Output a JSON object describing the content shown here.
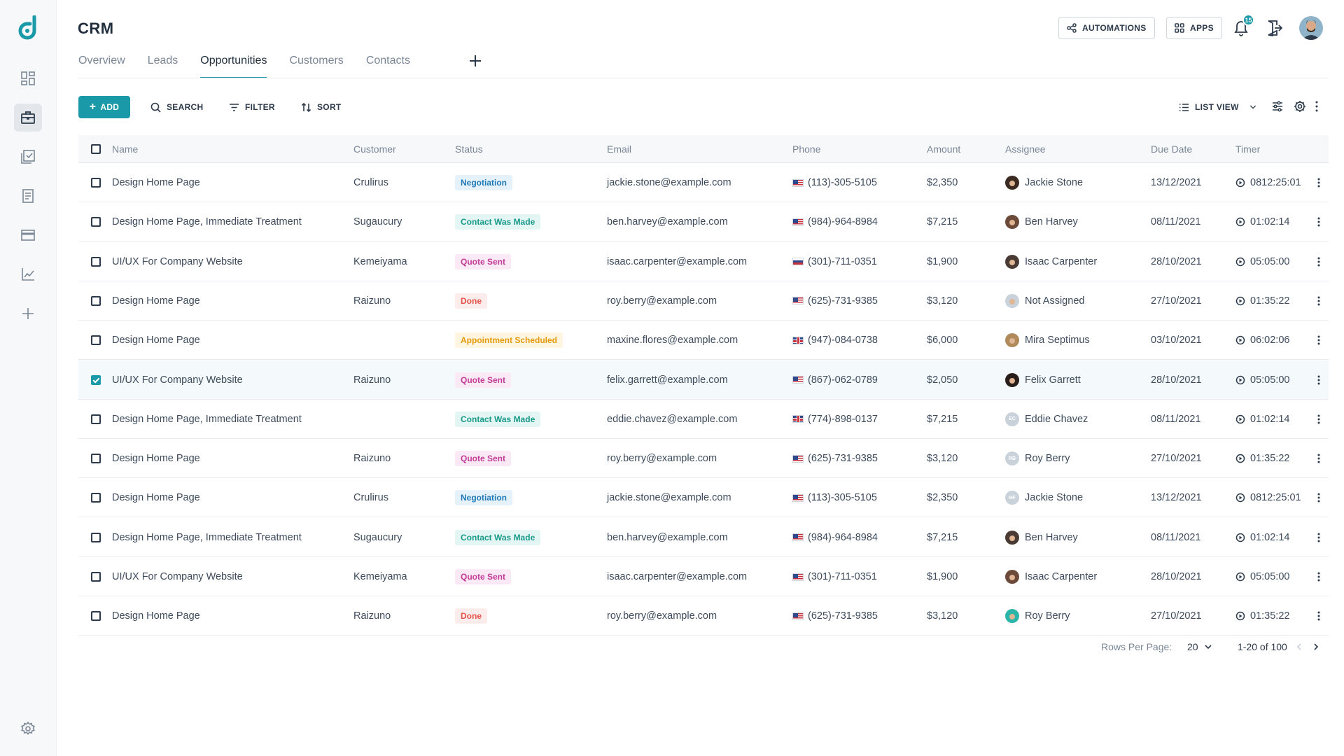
{
  "app": {
    "title": "CRM",
    "brand_color": "#1a9aa8",
    "notifications_count": "15",
    "avatar": "user-avatar"
  },
  "sidebar": {
    "items": [
      {
        "name": "dashboard-icon",
        "active": false
      },
      {
        "name": "briefcase-icon",
        "active": true
      },
      {
        "name": "tasks-icon",
        "active": false
      },
      {
        "name": "document-icon",
        "active": false
      },
      {
        "name": "card-icon",
        "active": false
      },
      {
        "name": "chart-icon",
        "active": false
      },
      {
        "name": "plus-icon",
        "active": false
      }
    ],
    "settings": "settings-icon"
  },
  "header": {
    "automations_label": "AUTOMATIONS",
    "apps_label": "APPS"
  },
  "tabs": [
    {
      "label": "Overview",
      "active": false
    },
    {
      "label": "Leads",
      "active": false
    },
    {
      "label": "Opportunities",
      "active": true
    },
    {
      "label": "Customers",
      "active": false
    },
    {
      "label": "Contacts",
      "active": false
    }
  ],
  "toolbar": {
    "add_label": "ADD",
    "search_label": "SEARCH",
    "filter_label": "FILTER",
    "sort_label": "SORT",
    "view_label": "LIST VIEW"
  },
  "table": {
    "columns": [
      "Name",
      "Customer",
      "Status",
      "Email",
      "Phone",
      "Amount",
      "Assignee",
      "Due Date",
      "Timer"
    ],
    "rows": [
      {
        "name": "Design Home Page",
        "customer": "Crulirus",
        "status": "Negotiation",
        "status_type": "negotiation",
        "email": "jackie.stone@example.com",
        "flag": "us",
        "phone": "(113)-305-5105",
        "amount": "$2,350",
        "assignee": "Jackie Stone",
        "avatar_color": "#3a2a22",
        "avatar_initials": "",
        "due": "13/12/2021",
        "timer": "0812:25:01",
        "checked": false
      },
      {
        "name": "Design Home Page, Immediate Treatment",
        "customer": "Sugaucury",
        "status": "Contact Was Made",
        "status_type": "contact",
        "email": "ben.harvey@example.com",
        "flag": "us",
        "phone": "(984)-964-8984",
        "amount": "$7,215",
        "assignee": "Ben Harvey",
        "avatar_color": "#6b4a3a",
        "avatar_initials": "",
        "due": "08/11/2021",
        "timer": "01:02:14",
        "checked": false
      },
      {
        "name": "UI/UX For Company Website",
        "customer": "Kemeiyama",
        "status": "Quote Sent",
        "status_type": "quote",
        "email": "isaac.carpenter@example.com",
        "flag": "ru",
        "phone": "(301)-711-0351",
        "amount": "$1,900",
        "assignee": "Isaac Carpenter",
        "avatar_color": "#4a3a34",
        "avatar_initials": "",
        "due": "28/10/2021",
        "timer": "05:05:00",
        "checked": false
      },
      {
        "name": "Design Home Page",
        "customer": "Raizuno",
        "status": "Done",
        "status_type": "done",
        "email": "roy.berry@example.com",
        "flag": "us",
        "phone": "(625)-731-9385",
        "amount": "$3,120",
        "assignee": "Not Assigned",
        "avatar_color": "#c9d1da",
        "avatar_initials": "",
        "due": "27/10/2021",
        "timer": "01:35:22",
        "checked": false
      },
      {
        "name": "Design Home Page",
        "customer": "",
        "status": "Appointment Scheduled",
        "status_type": "appointment",
        "email": "maxine.flores@example.com",
        "flag": "uk",
        "phone": "(947)-084-0738",
        "amount": "$6,000",
        "assignee": "Mira Septimus",
        "avatar_color": "#b08a5a",
        "avatar_initials": "",
        "due": "03/10/2021",
        "timer": "06:02:06",
        "checked": false
      },
      {
        "name": "UI/UX For Company Website",
        "customer": "Raizuno",
        "status": "Quote Sent",
        "status_type": "quote",
        "email": "felix.garrett@example.com",
        "flag": "us",
        "phone": "(867)-062-0789",
        "amount": "$2,050",
        "assignee": "Felix Garrett",
        "avatar_color": "#2a1e1a",
        "avatar_initials": "",
        "due": "28/10/2021",
        "timer": "05:05:00",
        "checked": true
      },
      {
        "name": "Design Home Page, Immediate Treatment",
        "customer": "",
        "status": "Contact Was Made",
        "status_type": "contact",
        "email": "eddie.chavez@example.com",
        "flag": "uk",
        "phone": "(774)-898-0137",
        "amount": "$7,215",
        "assignee": "Eddie Chavez",
        "avatar_color": "#c9d1da",
        "avatar_initials": "EC",
        "due": "08/11/2021",
        "timer": "01:02:14",
        "checked": false
      },
      {
        "name": "Design Home Page",
        "customer": "Raizuno",
        "status": "Quote Sent",
        "status_type": "quote",
        "email": "roy.berry@example.com",
        "flag": "us",
        "phone": "(625)-731-9385",
        "amount": "$3,120",
        "assignee": "Roy Berry",
        "avatar_color": "#c9d1da",
        "avatar_initials": "RB",
        "due": "27/10/2021",
        "timer": "01:35:22",
        "checked": false
      },
      {
        "name": "Design Home Page",
        "customer": "Crulirus",
        "status": "Negotiation",
        "status_type": "negotiation",
        "email": "jackie.stone@example.com",
        "flag": "us",
        "phone": "(113)-305-5105",
        "amount": "$2,350",
        "assignee": "Jackie Stone",
        "avatar_color": "#c9d1da",
        "avatar_initials": "MF",
        "due": "13/12/2021",
        "timer": "0812:25:01",
        "checked": false
      },
      {
        "name": "Design Home Page, Immediate Treatment",
        "customer": "Sugaucury",
        "status": "Contact Was Made",
        "status_type": "contact",
        "email": "ben.harvey@example.com",
        "flag": "us",
        "phone": "(984)-964-8984",
        "amount": "$7,215",
        "assignee": "Ben Harvey",
        "avatar_color": "#4a3a34",
        "avatar_initials": "",
        "due": "08/11/2021",
        "timer": "01:02:14",
        "checked": false
      },
      {
        "name": "UI/UX For Company Website",
        "customer": "Kemeiyama",
        "status": "Quote Sent",
        "status_type": "quote",
        "email": "isaac.carpenter@example.com",
        "flag": "us",
        "phone": "(301)-711-0351",
        "amount": "$1,900",
        "assignee": "Isaac Carpenter",
        "avatar_color": "#6b4a3a",
        "avatar_initials": "",
        "due": "28/10/2021",
        "timer": "05:05:00",
        "checked": false
      },
      {
        "name": "Design Home Page",
        "customer": "Raizuno",
        "status": "Done",
        "status_type": "done",
        "email": "roy.berry@example.com",
        "flag": "us",
        "phone": "(625)-731-9385",
        "amount": "$3,120",
        "assignee": "Roy Berry",
        "avatar_color": "#2bb5a8",
        "avatar_initials": "",
        "due": "27/10/2021",
        "timer": "01:35:22",
        "checked": false
      }
    ]
  },
  "pagination": {
    "rows_per_page_label": "Rows Per Page:",
    "rows_per_page": "20",
    "range": "1-20 of 100"
  }
}
